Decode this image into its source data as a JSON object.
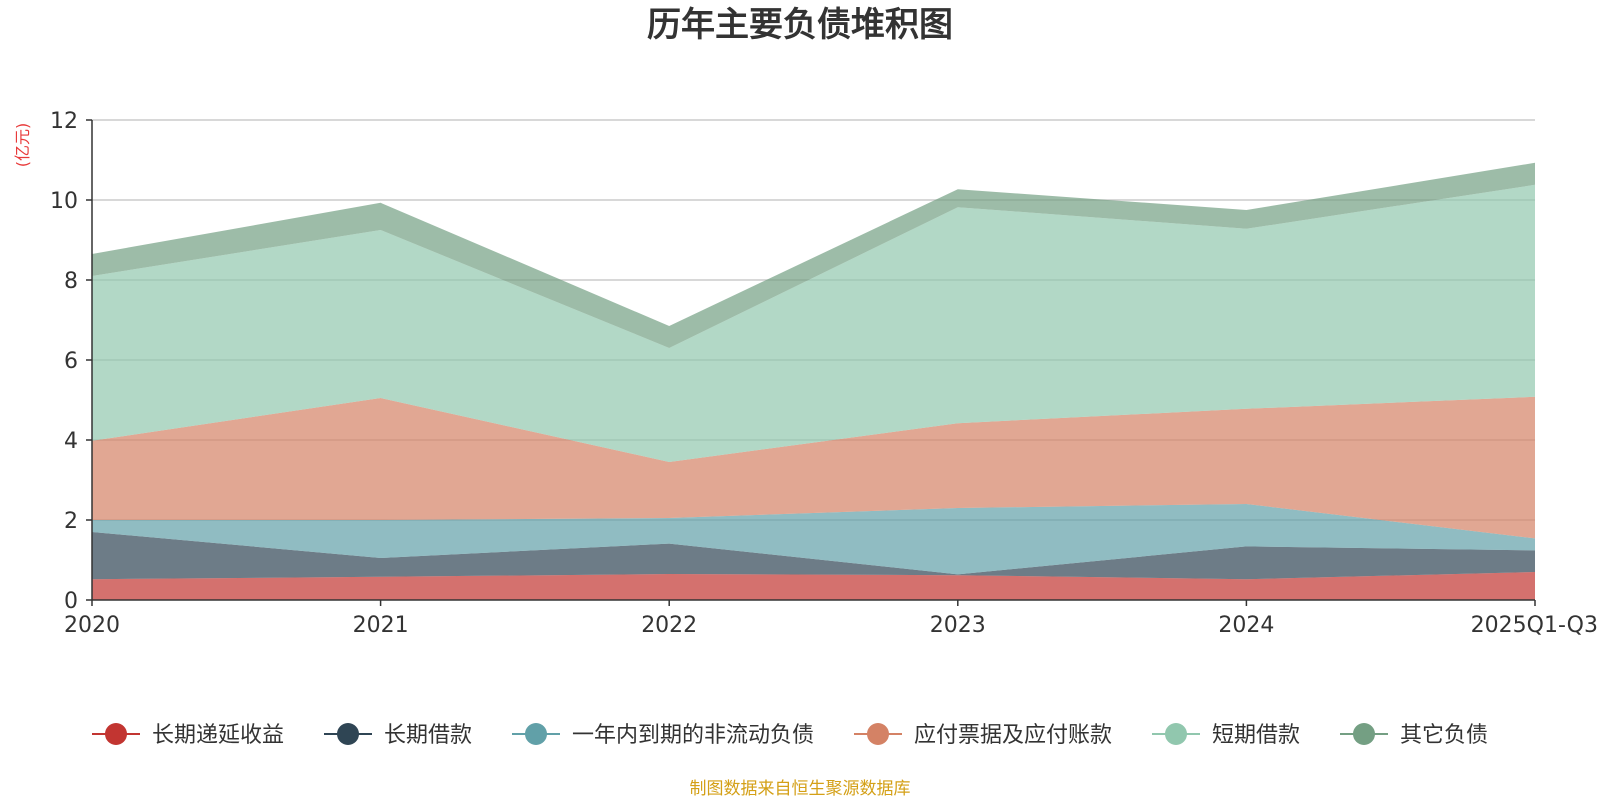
{
  "chart_data": {
    "type": "area",
    "stacked": true,
    "title": "历年主要负债堆积图",
    "unit_label": "(亿元)",
    "source": "制图数据来自恒生聚源数据库",
    "x": [
      "2020",
      "2021",
      "2022",
      "2023",
      "2024",
      "2025Q1-Q3"
    ],
    "ylim": [
      0,
      12
    ],
    "yticks": [
      0,
      2,
      4,
      6,
      8,
      10,
      12
    ],
    "grid": true,
    "legend_position": "bottom",
    "series": [
      {
        "name": "长期递延收益",
        "color": "#c23531",
        "values": [
          0.52,
          0.58,
          0.65,
          0.62,
          0.52,
          0.7
        ]
      },
      {
        "name": "长期借款",
        "color": "#2f4554",
        "values": [
          1.18,
          0.47,
          0.76,
          0.02,
          0.82,
          0.54
        ]
      },
      {
        "name": "一年内到期的非流动负债",
        "color": "#61a0a8",
        "values": [
          0.3,
          0.95,
          0.64,
          1.66,
          1.06,
          0.3
        ]
      },
      {
        "name": "应付票据及应付账款",
        "color": "#d48265",
        "values": [
          1.98,
          3.05,
          1.4,
          2.12,
          2.38,
          3.54
        ]
      },
      {
        "name": "短期借款",
        "color": "#91c7ae",
        "values": [
          4.12,
          4.2,
          2.85,
          5.4,
          4.5,
          5.3
        ]
      },
      {
        "name": "其它负债",
        "color": "#749f83",
        "values": [
          0.55,
          0.68,
          0.55,
          0.45,
          0.47,
          0.55
        ]
      }
    ]
  }
}
